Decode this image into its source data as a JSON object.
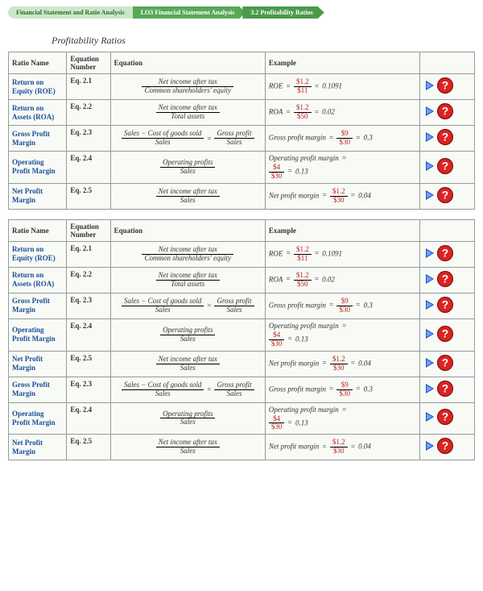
{
  "breadcrumb": {
    "c1": "Financial Statement and Ratio Analysis",
    "c2": "LO3  Financial Statement Analysis",
    "c3": "3.2  Profitability Ratios"
  },
  "heading": "Profitability Ratios",
  "headers": {
    "name": "Ratio Name",
    "eqnum": "Equation Number",
    "eq": "Equation",
    "ex": "Example"
  },
  "colors": {
    "link": "#1a4d9c",
    "red": "#c02020",
    "border": "#999999",
    "rowbg": "#f8faf5",
    "crumb_light": "#c9e8c9",
    "crumb_mid": "#58a858",
    "crumb_dark": "#4a9a4a"
  },
  "table1": [
    {
      "name": "Return on Equity (ROE)",
      "eqnum": "Eq. 2.1",
      "eq_top": "Net income after tax",
      "eq_bot": "Common shareholders' equity",
      "ex_lhs": "ROE",
      "ex_top": "$1.2",
      "ex_bot": "$11",
      "ex_res": "0.1091"
    },
    {
      "name": "Return on Assets (ROA)",
      "eqnum": "Eq. 2.2",
      "eq_top": "Net income after tax",
      "eq_bot": "Total assets",
      "ex_lhs": "ROA",
      "ex_top": "$1.2",
      "ex_bot": "$50",
      "ex_res": "0.02"
    },
    {
      "name": "Gross Profit Margin",
      "eqnum": "Eq. 2.3",
      "eq_special": "gross",
      "eq_top": "Sales − Cost of goods sold",
      "eq_bot": "Sales",
      "eq2_top": "Gross profit",
      "eq2_bot": "Sales",
      "ex_lhs": "Gross profit margin",
      "ex_top": "$9",
      "ex_bot": "$30",
      "ex_res": "0.3"
    },
    {
      "name": "Operating Profit Margin",
      "eqnum": "Eq. 2.4",
      "eq_top": "Operating profits",
      "eq_bot": "Sales",
      "ex_multiline": true,
      "ex_lhs": "Operating profit margin",
      "ex_top": "$4",
      "ex_bot": "$30",
      "ex_res": "0.13"
    },
    {
      "name": "Net Profit Margin",
      "eqnum": "Eq. 2.5",
      "eq_top": "Net income after tax",
      "eq_bot": "Sales",
      "ex_lhs": "Net profit margin",
      "ex_top": "$1.2",
      "ex_bot": "$30",
      "ex_res": "0.04"
    }
  ],
  "table2": [
    {
      "name": "Return on Equity (ROE)",
      "eqnum": "Eq. 2.1",
      "eq_top": "Net income after tax",
      "eq_bot": "Common shareholders' equity",
      "ex_lhs": "ROE",
      "ex_top": "$1.2",
      "ex_bot": "$11",
      "ex_res": "0.1091"
    },
    {
      "name": "Return on Assets (ROA)",
      "eqnum": "Eq. 2.2",
      "eq_top": "Net income after tax",
      "eq_bot": "Total assets",
      "ex_lhs": "ROA",
      "ex_top": "$1.2",
      "ex_bot": "$50",
      "ex_res": "0.02"
    },
    {
      "name": "Gross Profit Margin",
      "eqnum": "Eq. 2.3",
      "eq_special": "gross",
      "eq_top": "Sales − Cost of goods sold",
      "eq_bot": "Sales",
      "eq2_top": "Gross profit",
      "eq2_bot": "Sales",
      "ex_lhs": "Gross profit margin",
      "ex_top": "$9",
      "ex_bot": "$30",
      "ex_res": "0.3"
    },
    {
      "name": "Operating Profit Margin",
      "eqnum": "Eq. 2.4",
      "eq_top": "Operating profits",
      "eq_bot": "Sales",
      "ex_multiline": true,
      "ex_lhs": "Operating profit margin",
      "ex_top": "$4",
      "ex_bot": "$30",
      "ex_res": "0.13"
    },
    {
      "name": "Net Profit Margin",
      "eqnum": "Eq. 2.5",
      "eq_top": "Net income after tax",
      "eq_bot": "Sales",
      "ex_lhs": "Net profit margin",
      "ex_top": "$1.2",
      "ex_bot": "$30",
      "ex_res": "0.04"
    },
    {
      "name": "Gross Profit Margin",
      "eqnum": "Eq. 2.3",
      "eq_special": "gross",
      "eq_top": "Sales − Cost of goods sold",
      "eq_bot": "Sales",
      "eq2_top": "Gross profit",
      "eq2_bot": "Sales",
      "ex_lhs": "Gross profit margin",
      "ex_top": "$9",
      "ex_bot": "$30",
      "ex_res": "0.3"
    },
    {
      "name": "Operating Profit Margin",
      "eqnum": "Eq. 2.4",
      "eq_top": "Operating profits",
      "eq_bot": "Sales",
      "ex_multiline": true,
      "ex_lhs": "Operating profit margin",
      "ex_top": "$4",
      "ex_bot": "$30",
      "ex_res": "0.13"
    },
    {
      "name": "Net Profit Margin",
      "eqnum": "Eq. 2.5",
      "eq_top": "Net income after tax",
      "eq_bot": "Sales",
      "ex_lhs": "Net profit margin",
      "ex_top": "$1.2",
      "ex_bot": "$30",
      "ex_res": "0.04"
    }
  ]
}
